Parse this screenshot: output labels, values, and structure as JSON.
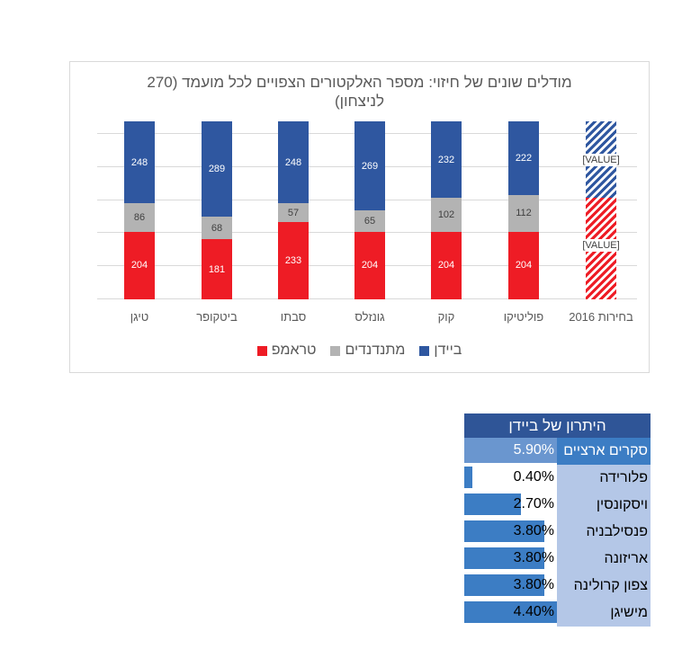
{
  "chart": {
    "title": "מודלים שונים של חיזוי: מספר האלקטורים הצפויים לכל מועמד (270 לניצחון)",
    "value_placeholder": "[VALUE]",
    "colors": {
      "biden": "#2f57a0",
      "others": "#b3b3b3",
      "trump": "#ee1c25"
    },
    "legend": [
      {
        "label": "ביידן",
        "color": "#2f57a0"
      },
      {
        "label": "מתנדנדים",
        "color": "#b3b3b3"
      },
      {
        "label": "טראמפ",
        "color": "#ee1c25"
      }
    ],
    "categories": [
      "טיגן",
      "ביטקופר",
      "סבתו",
      "גונזלס",
      "קוק",
      "פוליטיקו",
      "בחירות 2016"
    ]
  },
  "chart_data": {
    "type": "bar",
    "stacked": true,
    "title": "מודלים שונים של חיזוי: מספר האלקטורים הצפויים לכל מועמד (270 לניצחון)",
    "categories": [
      "טיגן",
      "ביטקופר",
      "סבתו",
      "גונזלס",
      "קוק",
      "פוליטיקו",
      "בחירות 2016"
    ],
    "series": [
      {
        "name": "טראמפ",
        "color": "#ee1c25",
        "values": [
          204,
          181,
          233,
          204,
          204,
          204,
          null
        ]
      },
      {
        "name": "מתנדנדים",
        "color": "#b3b3b3",
        "values": [
          86,
          68,
          57,
          65,
          102,
          112,
          null
        ]
      },
      {
        "name": "ביידן",
        "color": "#2f57a0",
        "values": [
          248,
          289,
          248,
          269,
          232,
          222,
          null
        ]
      }
    ],
    "annotations": [
      "בחירות 2016: hatched bar with [VALUE] placeholder labels"
    ],
    "xlabel": "",
    "ylabel": "",
    "ylim": [
      0,
      538
    ],
    "grid": true,
    "legend_position": "bottom"
  },
  "table": {
    "header": "היתרון של ביידן",
    "rows": [
      {
        "label": "סקרים ארציים",
        "value": "5.90%",
        "pct": 5.9,
        "national": true
      },
      {
        "label": "פלורידה",
        "value": "0.40%",
        "pct": 0.4
      },
      {
        "label": "ויסקונסין",
        "value": "2.70%",
        "pct": 2.7
      },
      {
        "label": "פנסילבניה",
        "value": "3.80%",
        "pct": 3.8
      },
      {
        "label": "אריזונה",
        "value": "3.80%",
        "pct": 3.8
      },
      {
        "label": "צפון קרולינה",
        "value": "3.80%",
        "pct": 3.8
      },
      {
        "label": "מישיגן",
        "value": "4.40%",
        "pct": 4.4
      }
    ]
  }
}
